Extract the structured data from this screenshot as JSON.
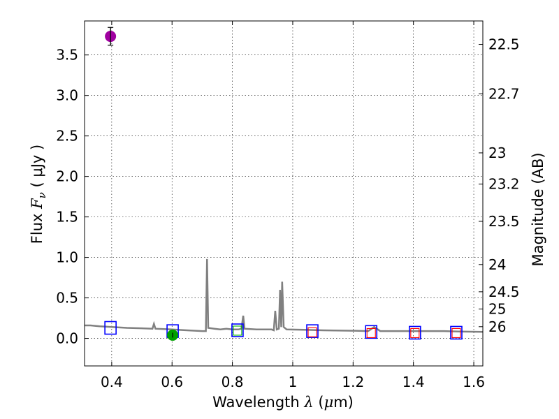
{
  "chart_data": {
    "type": "scatter",
    "xlabel": {
      "prefix": "Wavelength  ",
      "symbol": "λ",
      "unit_open": " (",
      "unit_mu": "μ",
      "unit_rest": "m)"
    },
    "ylabel": {
      "prefix": "Flux  ",
      "symbol": "F",
      "subscript": "ν",
      "unit": "  ( μJy )"
    },
    "y2label": "Magnitude (AB)",
    "xlim": [
      0.31,
      1.63
    ],
    "ylim": [
      -0.34,
      3.92
    ],
    "grid": true,
    "xticks": [
      "0.4",
      "0.6",
      "0.8",
      "1",
      "1.2",
      "1.4",
      "1.6"
    ],
    "xtick_values": [
      0.4,
      0.6,
      0.8,
      1.0,
      1.2,
      1.4,
      1.6
    ],
    "yticks": [
      "0.0",
      "0.5",
      "1.0",
      "1.5",
      "2.0",
      "2.5",
      "3.0",
      "3.5"
    ],
    "ytick_values": [
      0.0,
      0.5,
      1.0,
      1.5,
      2.0,
      2.5,
      3.0,
      3.5
    ],
    "y2ticks": [
      {
        "label": "22.5",
        "mag": 22.5
      },
      {
        "label": "22.7",
        "mag": 22.7
      },
      {
        "label": "23",
        "mag": 23.0
      },
      {
        "label": "23.2",
        "mag": 23.2
      },
      {
        "label": "23.5",
        "mag": 23.5
      },
      {
        "label": "24",
        "mag": 24.0
      },
      {
        "label": "24.5",
        "mag": 24.5
      },
      {
        "label": "25",
        "mag": 25.0
      },
      {
        "label": "26",
        "mag": 26.0
      }
    ],
    "template_spectrum": {
      "color": "#808080",
      "points": [
        [
          0.31,
          0.16
        ],
        [
          0.33,
          0.16
        ],
        [
          0.36,
          0.15
        ],
        [
          0.4,
          0.14
        ],
        [
          0.45,
          0.13
        ],
        [
          0.5,
          0.125
        ],
        [
          0.535,
          0.12
        ],
        [
          0.54,
          0.18
        ],
        [
          0.545,
          0.12
        ],
        [
          0.6,
          0.11
        ],
        [
          0.65,
          0.1
        ],
        [
          0.7,
          0.09
        ],
        [
          0.712,
          0.09
        ],
        [
          0.716,
          0.98
        ],
        [
          0.72,
          0.13
        ],
        [
          0.74,
          0.12
        ],
        [
          0.76,
          0.11
        ],
        [
          0.78,
          0.12
        ],
        [
          0.8,
          0.11
        ],
        [
          0.82,
          0.11
        ],
        [
          0.83,
          0.12
        ],
        [
          0.836,
          0.28
        ],
        [
          0.84,
          0.12
        ],
        [
          0.88,
          0.11
        ],
        [
          0.93,
          0.11
        ],
        [
          0.937,
          0.1
        ],
        [
          0.942,
          0.34
        ],
        [
          0.947,
          0.11
        ],
        [
          0.954,
          0.12
        ],
        [
          0.958,
          0.6
        ],
        [
          0.962,
          0.14
        ],
        [
          0.965,
          0.7
        ],
        [
          0.97,
          0.14
        ],
        [
          0.98,
          0.11
        ],
        [
          1.05,
          0.105
        ],
        [
          1.1,
          0.1
        ],
        [
          1.2,
          0.095
        ],
        [
          1.25,
          0.09
        ],
        [
          1.27,
          0.14
        ],
        [
          1.29,
          0.09
        ],
        [
          1.4,
          0.09
        ],
        [
          1.5,
          0.09
        ],
        [
          1.55,
          0.085
        ],
        [
          1.63,
          0.08
        ]
      ]
    },
    "model_photometry": {
      "marker": "square",
      "color": "#0000ff",
      "points": [
        [
          0.396,
          0.13
        ],
        [
          0.602,
          0.09
        ],
        [
          0.817,
          0.1
        ],
        [
          1.065,
          0.09
        ],
        [
          1.26,
          0.08
        ],
        [
          1.405,
          0.07
        ],
        [
          1.542,
          0.07
        ]
      ]
    },
    "observed_photometry": [
      {
        "x": 0.396,
        "y": 3.73,
        "yerr": 0.11,
        "color": "#a000a0",
        "marker": "circle"
      },
      {
        "x": 0.602,
        "y": 0.04,
        "yerr": 0.03,
        "color": "#00a000",
        "marker": "circle"
      },
      {
        "x": 0.817,
        "y": 0.1,
        "yerr": 0.0,
        "color": "#00b000",
        "marker": "open-square"
      },
      {
        "x": 1.065,
        "y": 0.08,
        "yerr": 0.0,
        "color": "#ff0000",
        "marker": "open-square"
      },
      {
        "x": 1.26,
        "y": 0.07,
        "yerr": 0.0,
        "color": "#ff0000",
        "marker": "open-square"
      },
      {
        "x": 1.405,
        "y": 0.07,
        "yerr": 0.0,
        "color": "#ff0000",
        "marker": "open-square"
      },
      {
        "x": 1.542,
        "y": 0.07,
        "yerr": 0.0,
        "color": "#ff0000",
        "marker": "open-square"
      }
    ]
  }
}
